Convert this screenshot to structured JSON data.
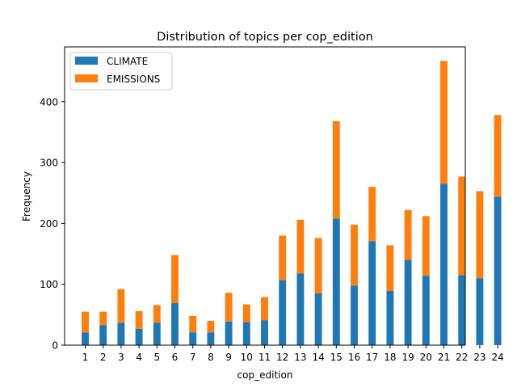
{
  "chart_data": {
    "type": "bar",
    "stacked": true,
    "title": "Distribution of topics per cop_edition",
    "xlabel": "cop_edition",
    "ylabel": "Frequency",
    "categories": [
      "1",
      "2",
      "3",
      "4",
      "5",
      "6",
      "7",
      "8",
      "9",
      "10",
      "11",
      "12",
      "13",
      "14",
      "15",
      "16",
      "17",
      "18",
      "19",
      "20",
      "21",
      "22",
      "23",
      "24"
    ],
    "series": [
      {
        "name": "CLIMATE",
        "color": "#1f77b4",
        "values": [
          21,
          33,
          37,
          27,
          37,
          69,
          21,
          21,
          39,
          38,
          41,
          107,
          118,
          85,
          208,
          98,
          171,
          89,
          140,
          114,
          265,
          115,
          110,
          244
        ]
      },
      {
        "name": "EMISSIONS",
        "color": "#ff7f0e",
        "values": [
          34,
          22,
          55,
          29,
          29,
          79,
          27,
          19,
          47,
          29,
          38,
          73,
          88,
          91,
          160,
          100,
          89,
          75,
          82,
          98,
          202,
          162,
          143,
          134
        ]
      }
    ],
    "ylim": [
      0,
      490
    ],
    "yticks": [
      0,
      100,
      200,
      300,
      400
    ],
    "legend_position": "top-left",
    "grid": false
  }
}
